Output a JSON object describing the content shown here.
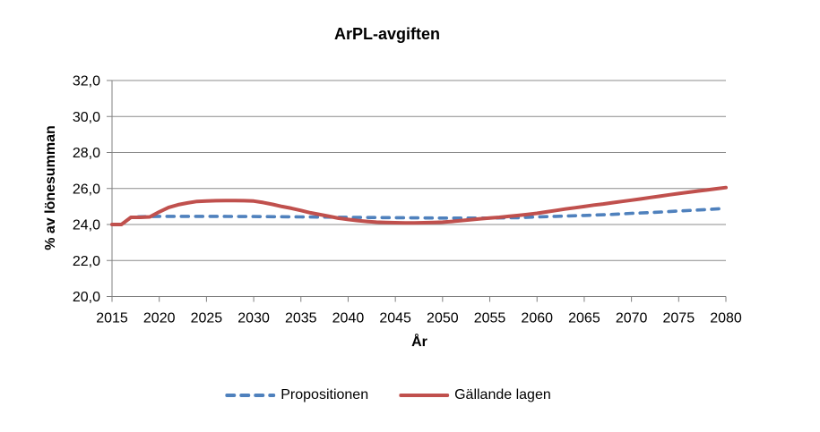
{
  "chart_data": {
    "type": "line",
    "title": "ArPL-avgiften",
    "xlabel": "År",
    "ylabel": "% av lönesumman",
    "xlim": [
      2015,
      2080
    ],
    "ylim": [
      20.0,
      32.0
    ],
    "grid": true,
    "legend_position": "bottom",
    "x_ticks": [
      2015,
      2020,
      2025,
      2030,
      2035,
      2040,
      2045,
      2050,
      2055,
      2060,
      2065,
      2070,
      2075,
      2080
    ],
    "y_ticks": [
      20,
      22,
      24,
      26,
      28,
      30,
      32
    ],
    "y_tick_labels": [
      "20,0",
      "22,0",
      "24,0",
      "26,0",
      "28,0",
      "30,0",
      "32,0"
    ],
    "colors": {
      "gridline": "#8c8c8c",
      "axis": "#808080",
      "text": "#000000"
    },
    "series": [
      {
        "name": "Propositionen",
        "color": "#4F81BD",
        "dash": true,
        "points": [
          [
            2015,
            24.0
          ],
          [
            2016,
            24.0
          ],
          [
            2017,
            24.4
          ],
          [
            2018,
            24.43
          ],
          [
            2020,
            24.45
          ],
          [
            2025,
            24.45
          ],
          [
            2030,
            24.44
          ],
          [
            2035,
            24.42
          ],
          [
            2040,
            24.4
          ],
          [
            2045,
            24.38
          ],
          [
            2050,
            24.36
          ],
          [
            2055,
            24.36
          ],
          [
            2058,
            24.38
          ],
          [
            2060,
            24.42
          ],
          [
            2062,
            24.45
          ],
          [
            2065,
            24.5
          ],
          [
            2068,
            24.56
          ],
          [
            2070,
            24.62
          ],
          [
            2072,
            24.66
          ],
          [
            2075,
            24.75
          ],
          [
            2078,
            24.83
          ],
          [
            2080,
            24.9
          ]
        ]
      },
      {
        "name": "Gällande lagen",
        "color": "#C0504D",
        "dash": false,
        "points": [
          [
            2015,
            24.0
          ],
          [
            2016,
            24.0
          ],
          [
            2017,
            24.4
          ],
          [
            2018,
            24.4
          ],
          [
            2019,
            24.42
          ],
          [
            2020,
            24.7
          ],
          [
            2021,
            24.95
          ],
          [
            2022,
            25.1
          ],
          [
            2023,
            25.2
          ],
          [
            2024,
            25.28
          ],
          [
            2025,
            25.3
          ],
          [
            2026,
            25.32
          ],
          [
            2027,
            25.33
          ],
          [
            2028,
            25.33
          ],
          [
            2029,
            25.32
          ],
          [
            2030,
            25.3
          ],
          [
            2031,
            25.22
          ],
          [
            2032,
            25.12
          ],
          [
            2033,
            25.0
          ],
          [
            2034,
            24.9
          ],
          [
            2035,
            24.78
          ],
          [
            2036,
            24.65
          ],
          [
            2037,
            24.55
          ],
          [
            2038,
            24.45
          ],
          [
            2039,
            24.35
          ],
          [
            2040,
            24.28
          ],
          [
            2041,
            24.22
          ],
          [
            2042,
            24.17
          ],
          [
            2043,
            24.13
          ],
          [
            2044,
            24.11
          ],
          [
            2045,
            24.1
          ],
          [
            2046,
            24.09
          ],
          [
            2047,
            24.09
          ],
          [
            2048,
            24.1
          ],
          [
            2049,
            24.11
          ],
          [
            2050,
            24.13
          ],
          [
            2051,
            24.17
          ],
          [
            2052,
            24.22
          ],
          [
            2053,
            24.27
          ],
          [
            2054,
            24.32
          ],
          [
            2055,
            24.36
          ],
          [
            2056,
            24.4
          ],
          [
            2057,
            24.45
          ],
          [
            2058,
            24.5
          ],
          [
            2059,
            24.56
          ],
          [
            2060,
            24.62
          ],
          [
            2061,
            24.7
          ],
          [
            2062,
            24.78
          ],
          [
            2063,
            24.86
          ],
          [
            2064,
            24.93
          ],
          [
            2065,
            25.0
          ],
          [
            2066,
            25.08
          ],
          [
            2067,
            25.14
          ],
          [
            2068,
            25.21
          ],
          [
            2069,
            25.28
          ],
          [
            2070,
            25.35
          ],
          [
            2071,
            25.42
          ],
          [
            2072,
            25.5
          ],
          [
            2073,
            25.57
          ],
          [
            2074,
            25.65
          ],
          [
            2075,
            25.72
          ],
          [
            2076,
            25.79
          ],
          [
            2077,
            25.86
          ],
          [
            2078,
            25.92
          ],
          [
            2079,
            25.99
          ],
          [
            2080,
            26.05
          ]
        ]
      }
    ]
  }
}
